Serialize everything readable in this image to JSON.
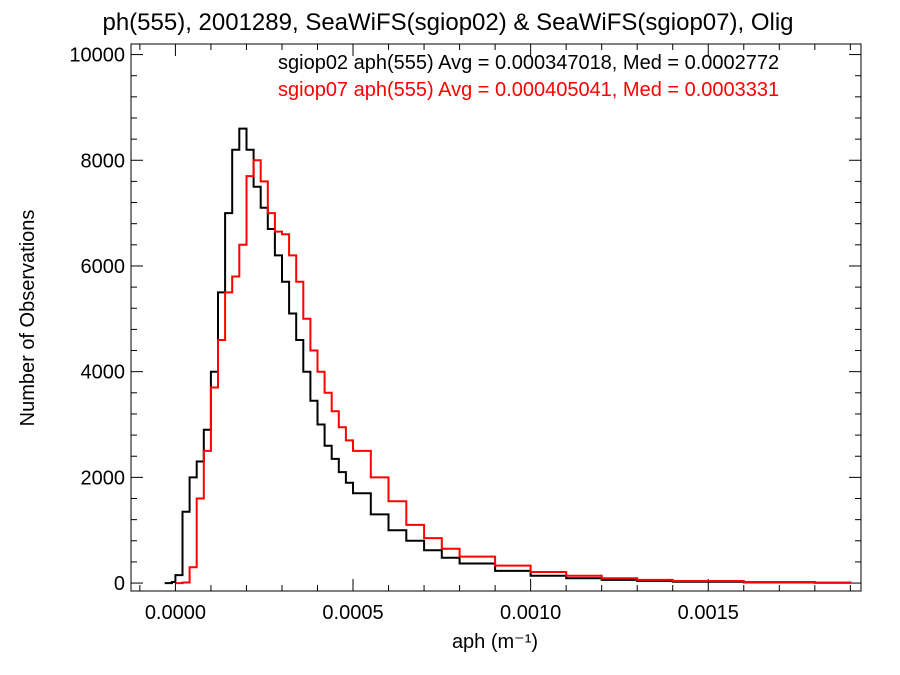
{
  "chart_data": {
    "type": "line",
    "title": "ph(555), 2001289, SeaWiFS(sgiop02) & SeaWiFS(sgiop07), Olig",
    "xlabel": "aph (m⁻¹)",
    "ylabel": "Number of Observations",
    "xlim": [
      -0.000125,
      0.00193
    ],
    "ylim": [
      -150,
      10200
    ],
    "xticks": [
      0.0,
      0.0005,
      0.001,
      0.0015
    ],
    "xtick_labels": [
      "0.0000",
      "0.0005",
      "0.0010",
      "0.0015"
    ],
    "yticks": [
      0,
      2000,
      4000,
      6000,
      8000,
      10000
    ],
    "ytick_labels": [
      "0",
      "2000",
      "4000",
      "6000",
      "8000",
      "10000"
    ],
    "grid": false,
    "legend_placement": "top-right",
    "series": [
      {
        "name": "sgiop02 aph(555) Avg = 0.000347018, Med = 0.0002772",
        "color": "#000000",
        "x": [
          -3e-05,
          -1e-05,
          0.0,
          2e-05,
          4e-05,
          6e-05,
          8e-05,
          0.0001,
          0.00012,
          0.00014,
          0.00016,
          0.00018,
          0.0002,
          0.00022,
          0.00024,
          0.00026,
          0.00028,
          0.0003,
          0.00032,
          0.00034,
          0.00036,
          0.00038,
          0.0004,
          0.00042,
          0.00044,
          0.00046,
          0.00048,
          0.0005,
          0.00055,
          0.0006,
          0.00065,
          0.0007,
          0.00075,
          0.0008,
          0.0009,
          0.001,
          0.0011,
          0.0012,
          0.0013,
          0.0014,
          0.0016,
          0.0018,
          0.0019
        ],
        "y": [
          0,
          20,
          150,
          1350,
          2000,
          2300,
          2900,
          4000,
          5500,
          7000,
          8200,
          8600,
          8200,
          7500,
          7100,
          6700,
          6200,
          5700,
          5100,
          4600,
          4000,
          3450,
          3000,
          2600,
          2350,
          2100,
          1900,
          1700,
          1300,
          1000,
          800,
          620,
          480,
          370,
          230,
          140,
          90,
          60,
          40,
          25,
          12,
          5,
          0
        ]
      },
      {
        "name": "sgiop07 aph(555) Avg = 0.000405041, Med = 0.0003331",
        "color": "#ff0000",
        "x": [
          0.0,
          2e-05,
          4e-05,
          6e-05,
          8e-05,
          0.0001,
          0.00012,
          0.00014,
          0.00016,
          0.00018,
          0.0002,
          0.00022,
          0.00024,
          0.00026,
          0.00028,
          0.0003,
          0.00032,
          0.00034,
          0.00036,
          0.00038,
          0.0004,
          0.00042,
          0.00044,
          0.00046,
          0.00048,
          0.0005,
          0.00055,
          0.0006,
          0.00065,
          0.0007,
          0.00075,
          0.0008,
          0.0009,
          0.001,
          0.0011,
          0.0012,
          0.0013,
          0.0014,
          0.0016,
          0.0018,
          0.0019
        ],
        "y": [
          0,
          10,
          300,
          1600,
          2500,
          3700,
          4600,
          5500,
          5800,
          6400,
          7700,
          8000,
          7600,
          7000,
          6650,
          6600,
          6200,
          5700,
          5000,
          4400,
          4000,
          3600,
          3250,
          2950,
          2700,
          2500,
          2000,
          1550,
          1100,
          850,
          650,
          500,
          330,
          210,
          140,
          90,
          60,
          40,
          20,
          8,
          0
        ]
      }
    ]
  }
}
